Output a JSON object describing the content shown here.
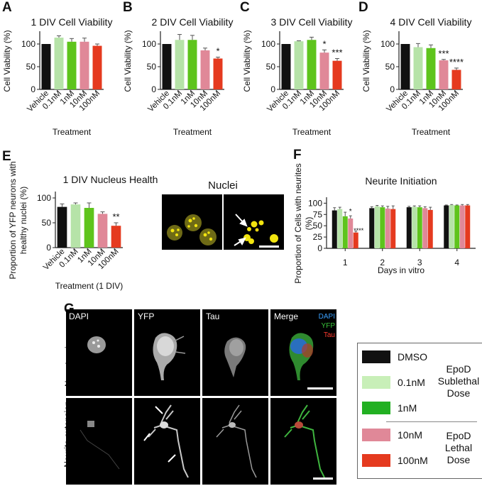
{
  "panels": {
    "A": "A",
    "B": "B",
    "C": "C",
    "D": "D",
    "E": "E",
    "F": "F",
    "G": "G"
  },
  "colors": {
    "vehicle": "#111111",
    "c01": "#b6e3a8",
    "c1": "#5ec41c",
    "c10": "#e08898",
    "c100": "#e53a1f",
    "mid": "#f0f0f0"
  },
  "chart_data": [
    {
      "type": "bar",
      "title": "1 DIV Cell Viability",
      "ylabel": "Cell Viability (%)",
      "xlabel": "Treatment",
      "categories": [
        "Vehicle",
        "0.1nM",
        "1nM",
        "10nM",
        "100nM"
      ],
      "values": [
        100,
        114,
        105,
        105,
        96
      ],
      "errors": [
        0,
        4,
        7,
        8,
        4
      ],
      "annotations": [
        "",
        "",
        "",
        "",
        ""
      ],
      "ylim": [
        0,
        125
      ],
      "yticks": [
        "0",
        "50",
        "100"
      ]
    },
    {
      "type": "bar",
      "title": "2 DIV Cell Viability",
      "ylabel": "Cell Viability (%)",
      "xlabel": "Treatment",
      "categories": [
        "Vehicle",
        "0.1nM",
        "1nM",
        "10nM",
        "100nM"
      ],
      "values": [
        100,
        109,
        109,
        86,
        68
      ],
      "errors": [
        0,
        12,
        10,
        5,
        3
      ],
      "annotations": [
        "",
        "",
        "",
        "",
        "*"
      ],
      "ylim": [
        0,
        125
      ],
      "yticks": [
        "0",
        "50",
        "100"
      ]
    },
    {
      "type": "bar",
      "title": "3 DIV Cell Viability",
      "ylabel": "Cell Viability (%)",
      "xlabel": "Treatment",
      "categories": [
        "Vehicle",
        "0.1nM",
        "1nM",
        "10nM",
        "100nM"
      ],
      "values": [
        100,
        106,
        109,
        81,
        63
      ],
      "errors": [
        0,
        1,
        6,
        6,
        5
      ],
      "annotations": [
        "",
        "",
        "",
        "*",
        "***"
      ],
      "ylim": [
        0,
        125
      ],
      "yticks": [
        "0",
        "50",
        "100"
      ]
    },
    {
      "type": "bar",
      "title": "4 DIV Cell Viability",
      "ylabel": "Cell Viability (%)",
      "xlabel": "Treatment",
      "categories": [
        "Vehicle",
        "0.1nM",
        "1nM",
        "10nM",
        "100nM"
      ],
      "values": [
        100,
        93,
        91,
        64,
        43
      ],
      "errors": [
        0,
        8,
        7,
        2,
        4
      ],
      "annotations": [
        "",
        "",
        "",
        "***",
        "****"
      ],
      "ylim": [
        0,
        125
      ],
      "yticks": [
        "0",
        "50",
        "100"
      ]
    },
    {
      "type": "bar",
      "title": "1 DIV Nucleus Health",
      "ylabel": "Proportion of YFP neurons with healthy nuclei (%)",
      "xlabel": "Treatment (1 DIV)",
      "categories": [
        "Vehicle",
        "0.1nM",
        "1nM",
        "10nM",
        "100nM"
      ],
      "values": [
        82,
        87,
        80,
        68,
        44
      ],
      "errors": [
        6,
        3,
        10,
        4,
        6
      ],
      "annotations": [
        "",
        "",
        "",
        "",
        "**"
      ],
      "ylim": [
        0,
        110
      ],
      "yticks": [
        "0",
        "50",
        "100"
      ]
    },
    {
      "type": "bar",
      "title": "Neurite Initiation",
      "ylabel": "Proportion of Cells with neurites (%)",
      "xlabel": "Days in vitro",
      "categories": [
        "1",
        "2",
        "3",
        "4"
      ],
      "series": [
        {
          "values": [
            84,
            89,
            91,
            95
          ],
          "errors": [
            6,
            3,
            2,
            1
          ]
        },
        {
          "values": [
            87,
            93,
            92,
            96
          ],
          "errors": [
            4,
            2,
            2,
            1
          ]
        },
        {
          "values": [
            71,
            91,
            91,
            95
          ],
          "errors": [
            9,
            3,
            3,
            1
          ]
        },
        {
          "values": [
            66,
            88,
            89,
            95
          ],
          "errors": [
            6,
            5,
            3,
            2
          ]
        },
        {
          "values": [
            35,
            87,
            85,
            95
          ],
          "errors": [
            3,
            7,
            6,
            2
          ]
        }
      ],
      "annotations": [
        [
          "",
          "",
          "",
          "*",
          "****"
        ],
        [
          "",
          "",
          "",
          "",
          ""
        ],
        [
          "",
          "",
          "",
          "",
          ""
        ],
        [
          "",
          "",
          "",
          "",
          ""
        ]
      ],
      "ylim": [
        0,
        110
      ],
      "yticks": [
        "0",
        "25",
        "50",
        "75",
        "100"
      ]
    }
  ],
  "nuclei": {
    "label": "Nuclei"
  },
  "micrographs": {
    "columns": [
      "DAPI",
      "YFP",
      "Tau",
      "Merge"
    ],
    "merge_channels": [
      "DAPI",
      "YFP",
      "Tau"
    ],
    "merge_colors": [
      "#3aa0ff",
      "#39c43a",
      "#ff3b2f"
    ],
    "rows": [
      "No extension",
      "Neurite extension"
    ]
  },
  "legend": {
    "items": [
      {
        "label": "DMSO",
        "color": "#111111"
      },
      {
        "label": "0.1nM",
        "color": "#c8efb8"
      },
      {
        "label": "1nM",
        "color": "#22b022"
      },
      {
        "label": "10nM",
        "color": "#e08898"
      },
      {
        "label": "100nM",
        "color": "#e53a1f"
      }
    ],
    "sublethal": "EpoD Sublethal Dose",
    "lethal": "EpoD Lethal Dose"
  }
}
